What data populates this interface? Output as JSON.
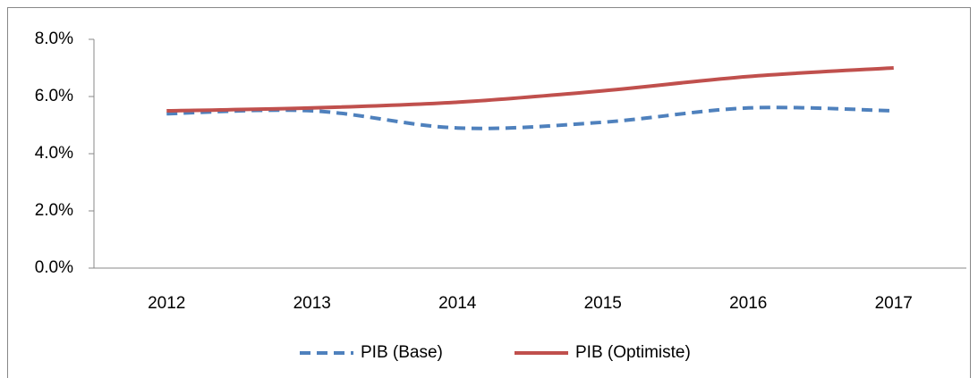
{
  "chart_data": {
    "type": "line",
    "categories": [
      "2012",
      "2013",
      "2014",
      "2015",
      "2016",
      "2017"
    ],
    "series": [
      {
        "name": "PIB (Base)",
        "color": "#4f81bd",
        "dash": true,
        "values": [
          5.4,
          5.5,
          4.9,
          5.1,
          5.6,
          5.5
        ]
      },
      {
        "name": "PIB (Optimiste)",
        "color": "#c0504d",
        "dash": false,
        "values": [
          5.5,
          5.6,
          5.8,
          6.2,
          6.7,
          7.0
        ]
      }
    ],
    "ylim": [
      0,
      8
    ],
    "yticks": [
      {
        "value": 0,
        "label": "0.0%"
      },
      {
        "value": 2,
        "label": "2.0%"
      },
      {
        "value": 4,
        "label": "4.0%"
      },
      {
        "value": 6,
        "label": "6.0%"
      },
      {
        "value": 8,
        "label": "8.0%"
      }
    ],
    "grid": false,
    "smooth": true,
    "legend": "bottom"
  }
}
